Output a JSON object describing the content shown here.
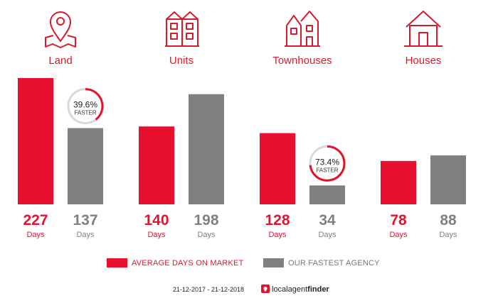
{
  "chart_data": {
    "type": "bar",
    "categories": [
      "Land",
      "Units",
      "Townhouses",
      "Houses"
    ],
    "series": [
      {
        "name": "AVERAGE DAYS ON MARKET",
        "values": [
          227,
          140,
          128,
          78
        ],
        "color": "#e8112d"
      },
      {
        "name": "OUR FASTEST AGENCY",
        "values": [
          137,
          198,
          34,
          88
        ],
        "color": "#808080"
      }
    ],
    "unit_label": "Days",
    "ylim": [
      0,
      227
    ],
    "faster_badges": [
      {
        "category": "Land",
        "percent": "39.6%",
        "label": "FASTER",
        "fraction": 0.396
      },
      {
        "category": "Townhouses",
        "percent": "73.4%",
        "label": "FASTER",
        "fraction": 0.734
      }
    ],
    "icons": [
      "map-pin-icon",
      "units-building-icon",
      "townhouses-icon",
      "house-icon"
    ],
    "legend_position": "bottom"
  },
  "footer": {
    "date_range": "21-12-2017 - 21-12-2018",
    "brand_prefix": "localagent",
    "brand_suffix": "finder"
  },
  "colors": {
    "accent": "#e8112d",
    "grey": "#808080"
  }
}
